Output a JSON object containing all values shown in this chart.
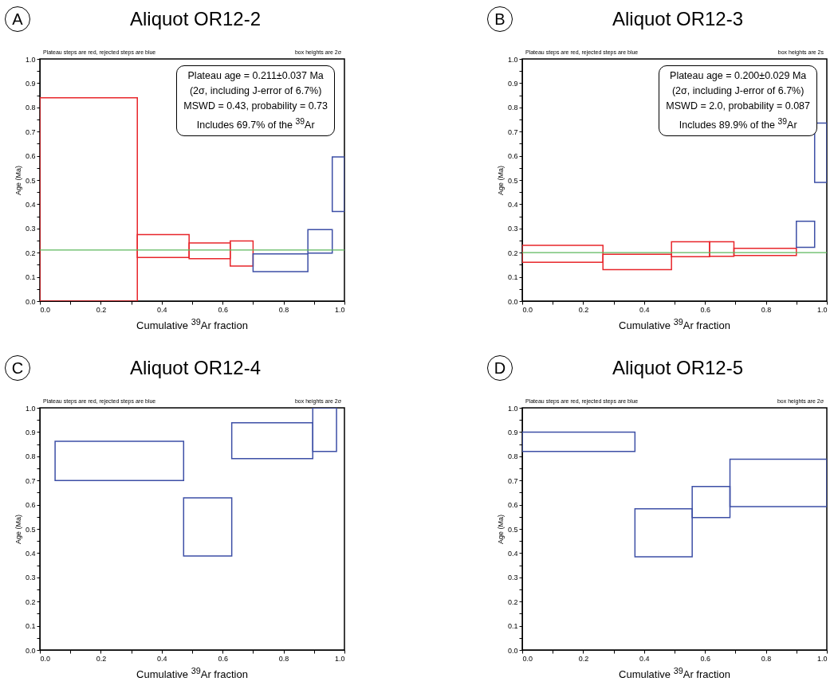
{
  "chart_data": [
    {
      "type": "histogram",
      "title": "Aliquot OR12-2",
      "xlabel": "Cumulative $^{39}$Ar fraction",
      "ylabel": "Age (Ma)",
      "bins": [
        0,
        0.32,
        0.49,
        0.625,
        0.7,
        0.88,
        0.96,
        1.0
      ],
      "base": [
        0,
        0.18,
        0.175,
        0.145,
        0.122,
        0.198,
        0.37
      ],
      "values": [
        0.84,
        0.095,
        0.065,
        0.103,
        0.073,
        0.097,
        0.225
      ],
      "colors": [
        "#e8262b",
        "#e8262b",
        "#e8262b",
        "#e8262b",
        "#3d4fa6",
        "#3d4fa6",
        "#3d4fa6"
      ],
      "xlim": [
        0,
        1
      ],
      "ylim": [
        0,
        1
      ],
      "xticks": [
        {
          "value": 0,
          "label": "0.0"
        },
        {
          "value": 0.1,
          "label": null
        },
        0.2,
        {
          "value": 0.3,
          "label": null
        },
        0.4,
        {
          "value": 0.5,
          "label": null
        },
        0.6,
        {
          "value": 0.7,
          "label": null
        },
        0.8,
        {
          "value": 0.9,
          "label": null
        },
        {
          "value": 1,
          "label": "1.0"
        }
      ],
      "yticks": [
        {
          "value": 0,
          "label": "0.0"
        },
        {
          "value": 0.05,
          "label": null
        },
        0.1,
        {
          "value": 0.15,
          "label": null
        },
        0.2,
        {
          "value": 0.25,
          "label": null
        },
        0.3,
        {
          "value": 0.35,
          "label": null
        },
        0.4,
        {
          "value": 0.45,
          "label": null
        },
        0.5,
        {
          "value": 0.55,
          "label": null
        },
        0.6,
        {
          "value": 0.65,
          "label": null
        },
        0.7,
        {
          "value": 0.75,
          "label": null
        },
        0.8,
        {
          "value": 0.85,
          "label": null
        },
        0.9,
        {
          "value": 0.95,
          "label": null
        },
        {
          "value": 1,
          "label": "1.0"
        }
      ],
      "ref_lines": [
        {
          "axis": "y",
          "value": 0.211,
          "color": "#5cb85c"
        }
      ],
      "annotations": [
        "A",
        "Plateau steps are red, rejected steps are blue",
        "box heights are 2σ",
        "Plateau age = 0.211±0.037 Ma",
        "(2σ, including J-error of 6.7%)",
        "MSWD = 0.43, probability = 0.73",
        "Includes 69.7% of the $^{39}$Ar"
      ]
    },
    {
      "type": "histogram",
      "title": "Aliquot OR12-3",
      "xlabel": "Cumulative $^{39}$Ar fraction",
      "ylabel": "Age (Ma)",
      "bins": [
        0,
        0.265,
        0.49,
        0.615,
        0.695,
        0.9,
        0.96,
        1.0
      ],
      "base": [
        0.16,
        0.13,
        0.183,
        0.185,
        0.188,
        0.222,
        0.49
      ],
      "values": [
        0.07,
        0.063,
        0.062,
        0.06,
        0.03,
        0.108,
        0.245
      ],
      "colors": [
        "#e8262b",
        "#e8262b",
        "#e8262b",
        "#e8262b",
        "#e8262b",
        "#3d4fa6",
        "#3d4fa6"
      ],
      "xlim": [
        0,
        1
      ],
      "ylim": [
        0,
        1
      ],
      "xticks": [
        {
          "value": 0,
          "label": "0.0"
        },
        {
          "value": 0.1,
          "label": null
        },
        0.2,
        {
          "value": 0.3,
          "label": null
        },
        0.4,
        {
          "value": 0.5,
          "label": null
        },
        0.6,
        {
          "value": 0.7,
          "label": null
        },
        0.8,
        {
          "value": 0.9,
          "label": null
        },
        {
          "value": 1,
          "label": "1.0"
        }
      ],
      "yticks": [
        {
          "value": 0,
          "label": "0.0"
        },
        {
          "value": 0.05,
          "label": null
        },
        0.1,
        {
          "value": 0.15,
          "label": null
        },
        0.2,
        {
          "value": 0.25,
          "label": null
        },
        0.3,
        {
          "value": 0.35,
          "label": null
        },
        0.4,
        {
          "value": 0.45,
          "label": null
        },
        0.5,
        {
          "value": 0.55,
          "label": null
        },
        0.6,
        {
          "value": 0.65,
          "label": null
        },
        0.7,
        {
          "value": 0.75,
          "label": null
        },
        0.8,
        {
          "value": 0.85,
          "label": null
        },
        0.9,
        {
          "value": 0.95,
          "label": null
        },
        {
          "value": 1,
          "label": "1.0"
        }
      ],
      "ref_lines": [
        {
          "axis": "y",
          "value": 0.2,
          "color": "#5cb85c"
        }
      ],
      "annotations": [
        "B",
        "Plateau steps are red, rejected steps are blue",
        "box heights are 2s",
        "Plateau age = 0.200±0.029 Ma",
        "(2σ, including J-error of 6.7%)",
        "MSWD = 2.0, probability = 0.087",
        "Includes 89.9% of the $^{39}$Ar"
      ]
    },
    {
      "type": "histogram",
      "title": "Aliquot OR12-4",
      "xlabel": "Cumulative $^{39}$Ar fraction",
      "ylabel": "Age (Ma)",
      "bins": [
        0.05,
        0.472,
        0.63,
        0.896,
        0.974
      ],
      "base": [
        0.7,
        0.388,
        0.79,
        0.82
      ],
      "values": [
        0.162,
        0.24,
        0.148,
        0.18
      ],
      "colors": [
        "#3d4fa6",
        "#3d4fa6",
        "#3d4fa6",
        "#3d4fa6"
      ],
      "xlim": [
        0,
        1
      ],
      "ylim": [
        0,
        1
      ],
      "xticks": [
        {
          "value": 0,
          "label": "0.0"
        },
        {
          "value": 0.1,
          "label": null
        },
        0.2,
        {
          "value": 0.3,
          "label": null
        },
        0.4,
        {
          "value": 0.5,
          "label": null
        },
        0.6,
        {
          "value": 0.7,
          "label": null
        },
        0.8,
        {
          "value": 0.9,
          "label": null
        },
        {
          "value": 1,
          "label": "1.0"
        }
      ],
      "yticks": [
        {
          "value": 0,
          "label": "0.0"
        },
        {
          "value": 0.05,
          "label": null
        },
        0.1,
        {
          "value": 0.15,
          "label": null
        },
        0.2,
        {
          "value": 0.25,
          "label": null
        },
        0.3,
        {
          "value": 0.35,
          "label": null
        },
        0.4,
        {
          "value": 0.45,
          "label": null
        },
        0.5,
        {
          "value": 0.55,
          "label": null
        },
        0.6,
        {
          "value": 0.65,
          "label": null
        },
        0.7,
        {
          "value": 0.75,
          "label": null
        },
        0.8,
        {
          "value": 0.85,
          "label": null
        },
        0.9,
        {
          "value": 0.95,
          "label": null
        },
        {
          "value": 1,
          "label": "1.0"
        }
      ],
      "annotations": [
        "C",
        "Plateau steps are red, rejected steps are blue",
        "box heights are 2σ"
      ]
    },
    {
      "type": "histogram",
      "title": "Aliquot OR12-5",
      "xlabel": "Cumulative $^{39}$Ar fraction",
      "ylabel": "Age (Ma)",
      "bins": [
        0,
        0.37,
        0.558,
        0.682,
        1.0
      ],
      "base": [
        0.82,
        0.385,
        0.547,
        0.592
      ],
      "values": [
        0.08,
        0.198,
        0.128,
        0.196
      ],
      "colors": [
        "#3d4fa6",
        "#3d4fa6",
        "#3d4fa6",
        "#3d4fa6"
      ],
      "xlim": [
        0,
        1
      ],
      "ylim": [
        0,
        1
      ],
      "xticks": [
        {
          "value": 0,
          "label": "0.0"
        },
        {
          "value": 0.1,
          "label": null
        },
        0.2,
        {
          "value": 0.3,
          "label": null
        },
        0.4,
        {
          "value": 0.5,
          "label": null
        },
        0.6,
        {
          "value": 0.7,
          "label": null
        },
        0.8,
        {
          "value": 0.9,
          "label": null
        },
        {
          "value": 1,
          "label": "1.0"
        }
      ],
      "yticks": [
        {
          "value": 0,
          "label": "0.0"
        },
        {
          "value": 0.05,
          "label": null
        },
        0.1,
        {
          "value": 0.15,
          "label": null
        },
        0.2,
        {
          "value": 0.25,
          "label": null
        },
        0.3,
        {
          "value": 0.35,
          "label": null
        },
        0.4,
        {
          "value": 0.45,
          "label": null
        },
        0.5,
        {
          "value": 0.55,
          "label": null
        },
        0.6,
        {
          "value": 0.65,
          "label": null
        },
        0.7,
        {
          "value": 0.75,
          "label": null
        },
        0.8,
        {
          "value": 0.85,
          "label": null
        },
        0.9,
        {
          "value": 0.95,
          "label": null
        },
        {
          "value": 1,
          "label": "1.0"
        }
      ],
      "annotations": [
        "D",
        "Plateau steps are red, rejected steps are blue",
        "box heights are 2σ"
      ]
    }
  ]
}
